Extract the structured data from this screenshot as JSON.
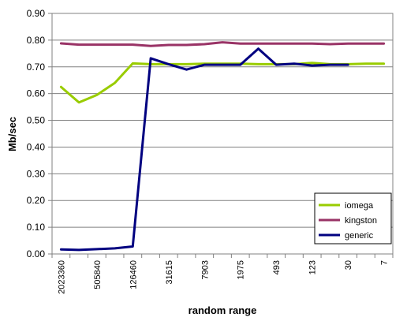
{
  "chart_data": {
    "type": "line",
    "xlabel": "random range",
    "ylabel": "Mb/sec",
    "ylim": [
      0,
      0.9
    ],
    "y_ticks": [
      "0.00",
      "0.10",
      "0.20",
      "0.30",
      "0.40",
      "0.50",
      "0.60",
      "0.70",
      "0.80",
      "0.90"
    ],
    "x_tick_labels": [
      "2023360",
      "505840",
      "126460",
      "31615",
      "7903",
      "1975",
      "493",
      "123",
      "30",
      "7"
    ],
    "grid": "horizontal",
    "legend_position": "bottom-right",
    "series": [
      {
        "name": "iomega",
        "color": "#99cc00",
        "values": [
          0.625,
          0.567,
          0.595,
          0.64,
          0.713,
          0.71,
          0.71,
          0.71,
          0.712,
          0.712,
          0.712,
          0.71,
          0.71,
          0.71,
          0.715,
          0.71,
          0.71,
          0.712,
          0.712
        ]
      },
      {
        "name": "kingston",
        "color": "#993366",
        "values": [
          0.788,
          0.783,
          0.783,
          0.783,
          0.783,
          0.778,
          0.782,
          0.782,
          0.785,
          0.792,
          0.787,
          0.787,
          0.787,
          0.787,
          0.787,
          0.785,
          0.787,
          0.787,
          0.787
        ]
      },
      {
        "name": "generic",
        "color": "#000080",
        "values": [
          0.017,
          0.015,
          0.018,
          0.021,
          0.028,
          0.732,
          0.71,
          0.69,
          0.708,
          0.708,
          0.708,
          0.768,
          0.708,
          0.712,
          0.705,
          0.708,
          0.708
        ]
      }
    ]
  }
}
